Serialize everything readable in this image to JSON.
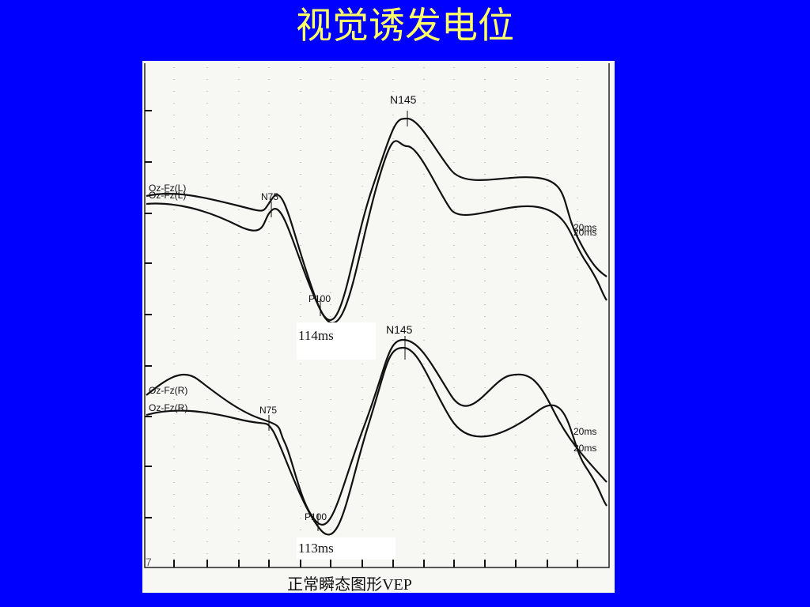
{
  "title": "视觉诱发电位",
  "panel": {
    "top": {
      "channels": [
        "Oz-Fz(L)",
        "Oz-Fz(L)"
      ],
      "n75": "N75",
      "p100": "P100",
      "n145": "N145",
      "latency": "114ms",
      "scales": [
        "20ms",
        "20ms"
      ]
    },
    "bottom": {
      "channels": [
        "Oz-Fz(R)",
        "Oz-Fz(R)"
      ],
      "n75": "N75",
      "p100": "P100",
      "n145": "N145",
      "latency": "113ms",
      "scales": [
        "20ms",
        "20ms"
      ]
    },
    "corner": "7",
    "caption": "正常瞬态图形VEP"
  }
}
